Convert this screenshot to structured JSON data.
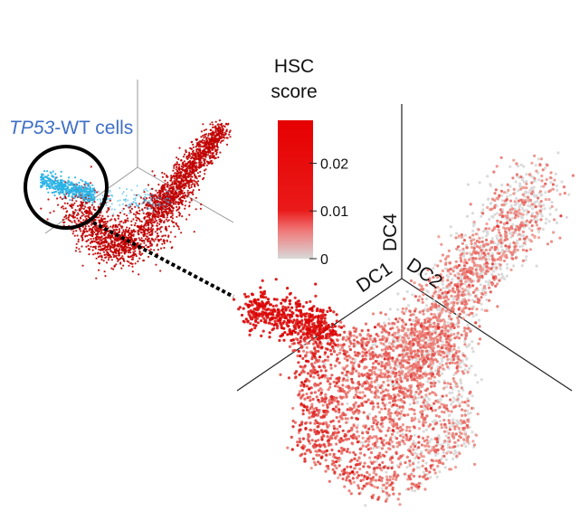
{
  "chart_data": [
    {
      "type": "scatter",
      "projection": "3d",
      "annotation": {
        "gene": "TP53",
        "rest": "-WT cells",
        "color": "#3f6fc6"
      },
      "colors": {
        "highlighted": "#2bb3e6",
        "other": "#c00000"
      }
    },
    {
      "type": "scatter",
      "projection": "3d",
      "axes": [
        "DC1",
        "DC2",
        "DC4"
      ],
      "colorbar": {
        "title_line1": "HSC",
        "title_line2": "score",
        "ticks": [
          {
            "value": 0.02,
            "label": "0.02"
          },
          {
            "value": 0.01,
            "label": "0.01"
          },
          {
            "value": 0,
            "label": "0"
          }
        ],
        "range": [
          0,
          0.029
        ],
        "low_color": "#d9d9d9",
        "high_color": "#e60000"
      }
    }
  ]
}
